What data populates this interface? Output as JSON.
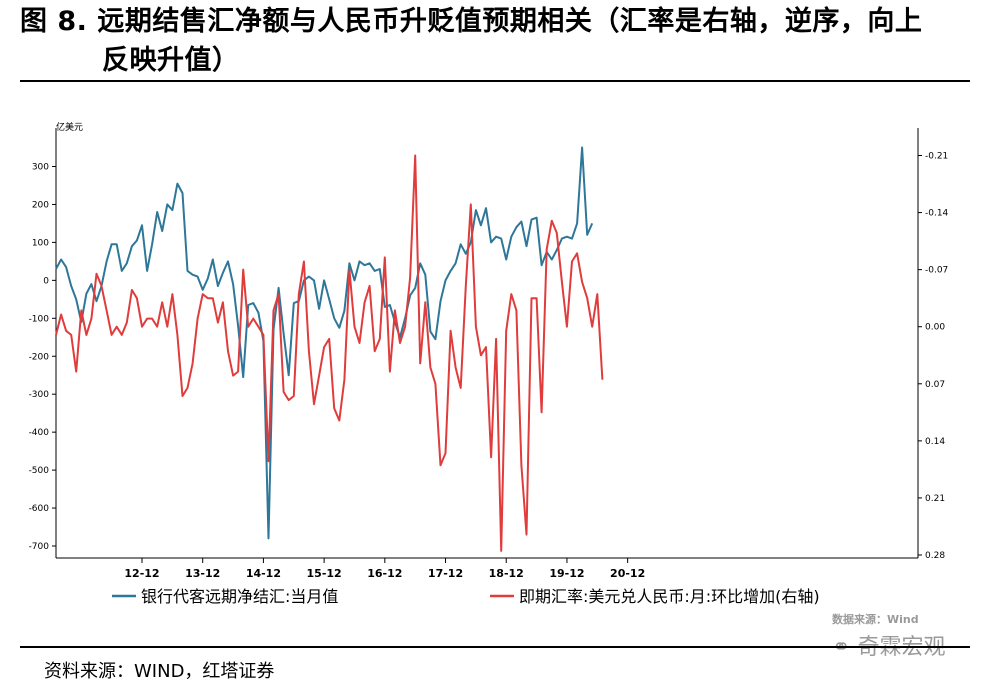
{
  "title_line1": "图 8. 远期结售汇净额与人民币升贬值预期相关（汇率是右轴，逆序，向上",
  "title_line2": "反映升值）",
  "footer_source": "资料来源：WIND，红塔证券",
  "watermark_source": "数据来源：Wind",
  "watermark_brand": "奇霖宏观",
  "colors": {
    "series1": "#2e7799",
    "series2": "#e03c3c",
    "axis": "#000000"
  },
  "chart_data": {
    "type": "line",
    "title": "",
    "ylabel_left": "亿美元",
    "x_ticks": [
      "12-12",
      "13-12",
      "14-12",
      "15-12",
      "16-12",
      "17-12",
      "18-12",
      "19-12",
      "20-12"
    ],
    "y_left": {
      "min": -700,
      "max": 300,
      "ticks": [
        300,
        200,
        100,
        0,
        -100,
        -200,
        -300,
        -400,
        -500,
        -600,
        -700
      ]
    },
    "y_right": {
      "min": -0.21,
      "max": 0.28,
      "inverted": true,
      "ticks": [
        "-0.21",
        "-0.14",
        "-0.07",
        "0.00",
        "0.07",
        "0.14",
        "0.21",
        "0.28"
      ]
    },
    "legend_position": "bottom",
    "series": [
      {
        "name": "银行代客远期净结汇:当月值",
        "axis": "left",
        "x_start": "2011-07",
        "values": [
          30,
          55,
          35,
          -15,
          -50,
          -110,
          -35,
          -10,
          -55,
          -15,
          50,
          95,
          95,
          25,
          45,
          90,
          105,
          145,
          25,
          95,
          180,
          130,
          200,
          185,
          255,
          230,
          25,
          15,
          10,
          -25,
          5,
          55,
          -15,
          20,
          50,
          -10,
          -120,
          -255,
          -65,
          -60,
          -85,
          -160,
          -680,
          -130,
          -20,
          -140,
          -250,
          -60,
          -55,
          0,
          10,
          0,
          -75,
          0,
          -50,
          -100,
          -125,
          -80,
          45,
          0,
          50,
          40,
          45,
          25,
          30,
          -70,
          -65,
          -110,
          -150,
          -100,
          -40,
          -20,
          45,
          15,
          -135,
          -155,
          -55,
          0,
          25,
          45,
          95,
          70,
          100,
          185,
          145,
          190,
          100,
          115,
          110,
          55,
          115,
          140,
          155,
          90,
          160,
          165,
          40,
          75,
          55,
          80,
          110,
          115,
          110,
          150,
          350,
          120,
          150
        ]
      },
      {
        "name": "即期汇率:美元兑人民币:月:环比增加(右轴)",
        "axis": "right",
        "x_start": "2011-07",
        "values": [
          0.01,
          -0.015,
          0.005,
          0.01,
          0.055,
          -0.02,
          0.01,
          -0.01,
          -0.065,
          -0.05,
          -0.02,
          0.01,
          0.0,
          0.01,
          -0.005,
          -0.045,
          -0.035,
          0.0,
          -0.01,
          -0.01,
          0.0,
          -0.03,
          0.0,
          -0.04,
          0.01,
          0.085,
          0.075,
          0.045,
          -0.01,
          -0.04,
          -0.035,
          -0.035,
          -0.005,
          -0.03,
          0.03,
          0.06,
          0.055,
          -0.07,
          0.0,
          -0.01,
          0.0,
          0.01,
          0.165,
          -0.02,
          -0.04,
          0.08,
          0.09,
          0.085,
          -0.04,
          -0.08,
          0.03,
          0.095,
          0.06,
          0.025,
          0.015,
          0.1,
          0.115,
          0.065,
          -0.07,
          0.0,
          0.02,
          -0.03,
          -0.05,
          0.03,
          0.015,
          -0.085,
          0.055,
          -0.02,
          0.02,
          0.0,
          -0.06,
          -0.21,
          0.045,
          -0.03,
          0.05,
          0.07,
          0.17,
          0.155,
          0.005,
          0.05,
          0.075,
          -0.05,
          -0.15,
          0.0,
          0.035,
          0.025,
          0.16,
          0.015,
          0.275,
          0.005,
          -0.04,
          -0.02,
          0.17,
          0.255,
          -0.035,
          -0.035,
          0.105,
          -0.095,
          -0.13,
          -0.115,
          -0.055,
          0.0,
          -0.08,
          -0.09,
          -0.055,
          -0.035,
          0.0,
          -0.04,
          0.065
        ]
      }
    ]
  }
}
